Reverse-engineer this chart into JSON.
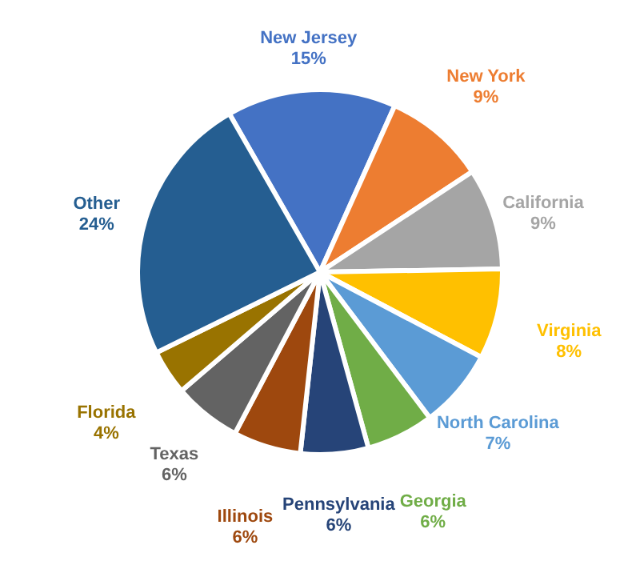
{
  "chart_data": {
    "type": "pie",
    "categories": [
      "New Jersey",
      "New York",
      "California",
      "Virginia",
      "North Carolina",
      "Georgia",
      "Pennsylvania",
      "Illinois",
      "Texas",
      "Florida",
      "Other"
    ],
    "values": [
      15,
      9,
      9,
      8,
      7,
      6,
      6,
      6,
      6,
      4,
      24
    ],
    "value_labels": [
      "15%",
      "9%",
      "9%",
      "8%",
      "7%",
      "6%",
      "6%",
      "6%",
      "6%",
      "4%",
      "24%"
    ],
    "colors": [
      "#4472c4",
      "#ed7d31",
      "#a5a5a5",
      "#ffc000",
      "#5b9bd5",
      "#70ad47",
      "#264478",
      "#9e480e",
      "#636363",
      "#997300",
      "#255e91"
    ]
  }
}
